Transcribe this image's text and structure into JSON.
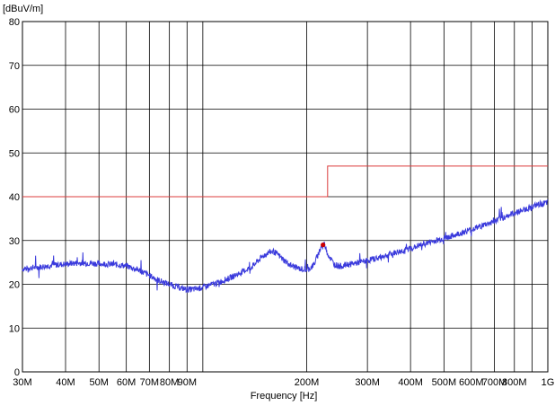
{
  "chart_data": {
    "type": "line",
    "y_unit_label": "[dBuV/m]",
    "xlabel": "Frequency [Hz]",
    "x_scale": "log",
    "xlim": [
      30000000,
      1000000000
    ],
    "ylim": [
      0,
      80
    ],
    "grid": true,
    "y_ticks": [
      {
        "value": 0,
        "label": "0"
      },
      {
        "value": 10,
        "label": "10"
      },
      {
        "value": 20,
        "label": "20"
      },
      {
        "value": 30,
        "label": "30"
      },
      {
        "value": 40,
        "label": "40"
      },
      {
        "value": 50,
        "label": "50"
      },
      {
        "value": 60,
        "label": "60"
      },
      {
        "value": 70,
        "label": "70"
      },
      {
        "value": 80,
        "label": "80"
      }
    ],
    "x_ticks": [
      {
        "value": 30000000,
        "label": "30M"
      },
      {
        "value": 40000000,
        "label": "40M"
      },
      {
        "value": 50000000,
        "label": "50M"
      },
      {
        "value": 60000000,
        "label": "60M"
      },
      {
        "value": 70000000,
        "label": "70M"
      },
      {
        "value": 80000000,
        "label": "80M"
      },
      {
        "value": 90000000,
        "label": "90M"
      },
      {
        "value": 100000000,
        "label": ""
      },
      {
        "value": 200000000,
        "label": "200M"
      },
      {
        "value": 300000000,
        "label": "300M"
      },
      {
        "value": 400000000,
        "label": "400M"
      },
      {
        "value": 500000000,
        "label": "500M"
      },
      {
        "value": 600000000,
        "label": "600M"
      },
      {
        "value": 700000000,
        "label": "700M"
      },
      {
        "value": 800000000,
        "label": "800M"
      },
      {
        "value": 900000000,
        "label": ""
      },
      {
        "value": 1000000000,
        "label": "1G"
      }
    ],
    "series": [
      {
        "color": "#3a3adc",
        "x": [
          30000000,
          32000000,
          34000000,
          36000000,
          38000000,
          40000000,
          42000000,
          45000000,
          48000000,
          52000000,
          56000000,
          60000000,
          65000000,
          70000000,
          75000000,
          80000000,
          85000000,
          90000000,
          95000000,
          100000000,
          110000000,
          120000000,
          130000000,
          140000000,
          145000000,
          150000000,
          155000000,
          160000000,
          165000000,
          170000000,
          180000000,
          190000000,
          200000000,
          205000000,
          210000000,
          215000000,
          220000000,
          225000000,
          230000000,
          240000000,
          250000000,
          260000000,
          280000000,
          300000000,
          330000000,
          360000000,
          400000000,
          450000000,
          500000000,
          550000000,
          600000000,
          650000000,
          700000000,
          750000000,
          800000000,
          850000000,
          900000000,
          950000000,
          1000000000
        ],
        "values": [
          23.5,
          23.8,
          24,
          24.3,
          24.5,
          24.6,
          24.8,
          24.9,
          24.8,
          24.6,
          24.5,
          24.2,
          23.3,
          22,
          20.8,
          20,
          19.3,
          18.8,
          18.9,
          19.3,
          20.3,
          21.5,
          22.8,
          24.2,
          25.5,
          26.5,
          27.3,
          27.5,
          26.8,
          25.8,
          24.3,
          23.6,
          23.3,
          23.7,
          24.5,
          26.5,
          28.5,
          29.3,
          27,
          24.6,
          24.1,
          24.4,
          24.9,
          25.4,
          26.3,
          27.2,
          28.2,
          29.5,
          30.5,
          31.5,
          32.5,
          33.5,
          34.4,
          35.4,
          36.3,
          37,
          37.7,
          38.3,
          38.6
        ]
      },
      {
        "color": "#dc3c3c",
        "x": [
          30000000,
          230000000,
          230000000,
          1000000000
        ],
        "values": [
          40,
          40,
          47,
          47
        ]
      }
    ],
    "markers": [
      {
        "x": 223000000,
        "y": 29,
        "color": "#cc0000"
      }
    ]
  }
}
